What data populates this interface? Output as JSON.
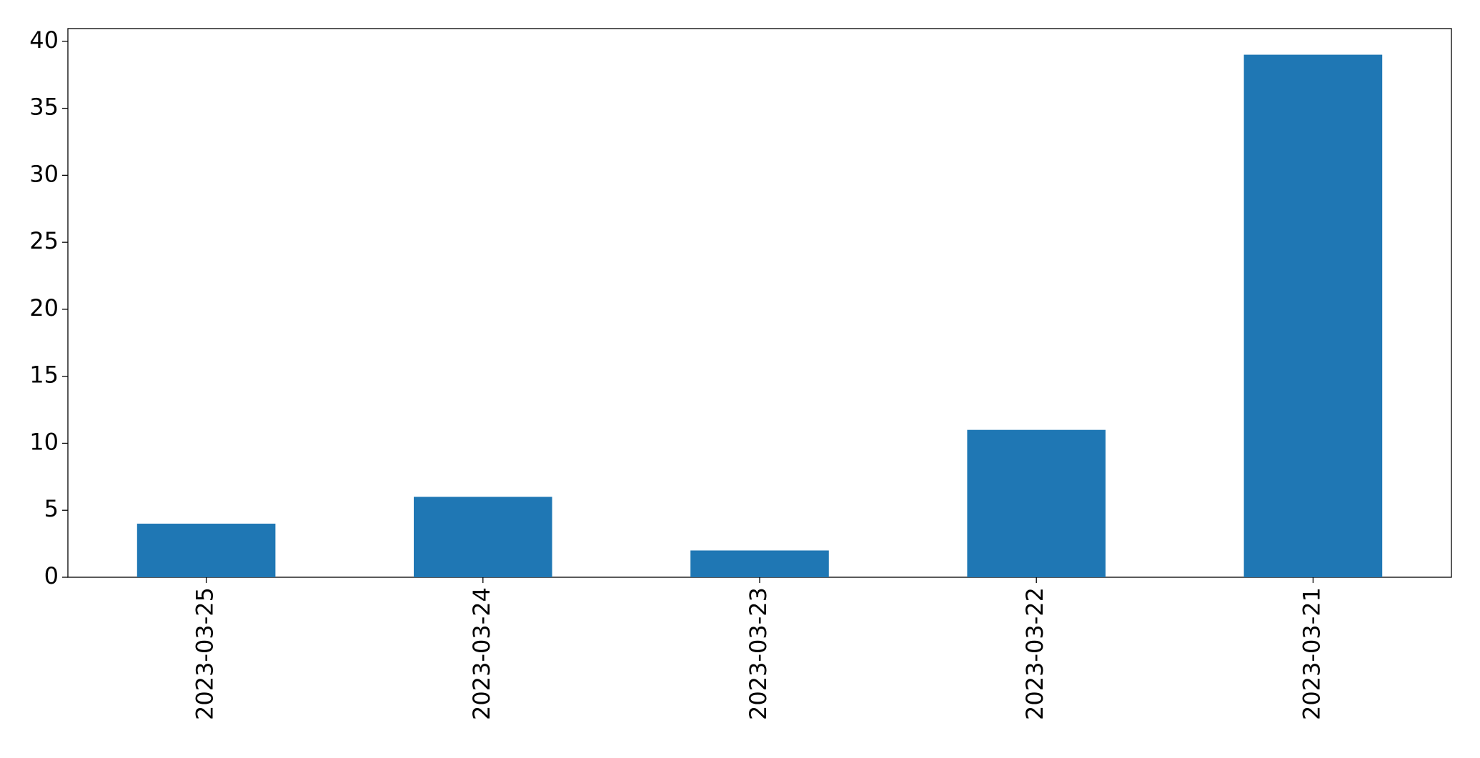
{
  "chart_data": {
    "type": "bar",
    "categories": [
      "2023-03-25",
      "2023-03-24",
      "2023-03-23",
      "2023-03-22",
      "2023-03-21"
    ],
    "values": [
      4,
      6,
      2,
      11,
      39
    ],
    "color": "#1f77b4",
    "ylim": [
      0,
      40.95
    ],
    "yticks": [
      0,
      5,
      10,
      15,
      20,
      25,
      30,
      35,
      40
    ],
    "grid": false
  }
}
